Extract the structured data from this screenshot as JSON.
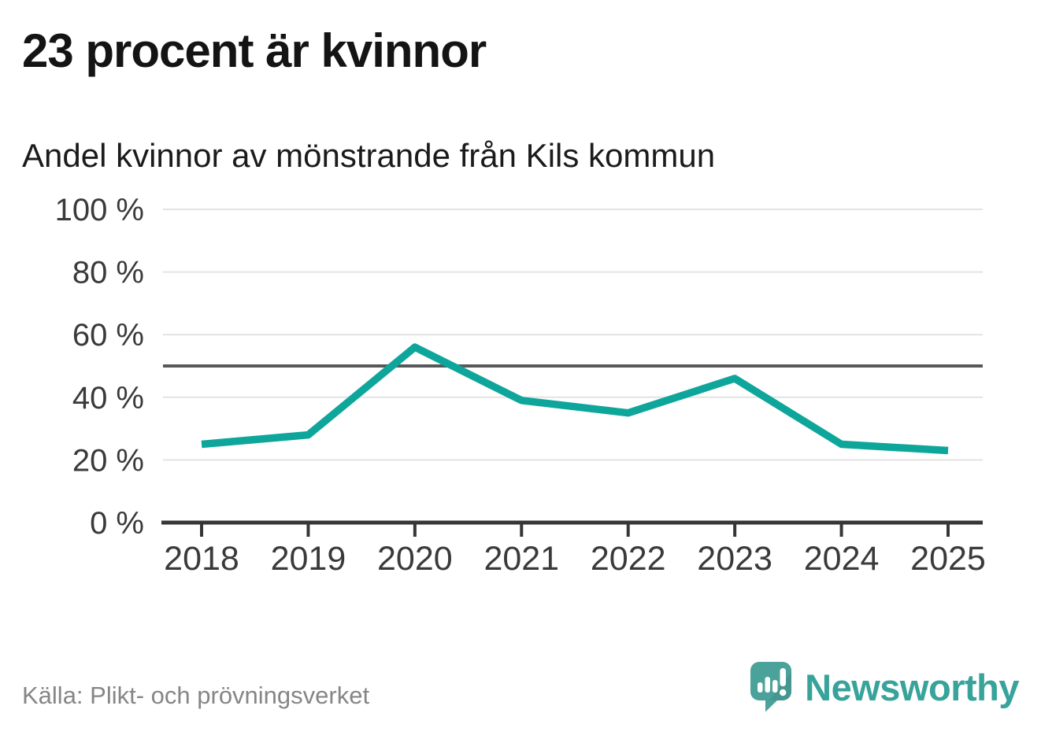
{
  "header": {
    "title": "23 procent är kvinnor",
    "subtitle": "Andel kvinnor av mönstrande från Kils kommun"
  },
  "chart_data": {
    "type": "line",
    "title": "23 procent är kvinnor",
    "subtitle": "Andel kvinnor av mönstrande från Kils kommun",
    "categories": [
      "2018",
      "2019",
      "2020",
      "2021",
      "2022",
      "2023",
      "2024",
      "2025"
    ],
    "series": [
      {
        "name": "Andel kvinnor av mönstrande",
        "values": [
          25,
          28,
          56,
          39,
          35,
          46,
          25,
          23
        ]
      }
    ],
    "xlabel": "",
    "ylabel": "",
    "ylim": [
      0,
      100
    ],
    "y_ticks": [
      {
        "value": 100,
        "label": "100 %"
      },
      {
        "value": 80,
        "label": "80 %"
      },
      {
        "value": 60,
        "label": "60 %"
      },
      {
        "value": 40,
        "label": "40 %"
      },
      {
        "value": 20,
        "label": "20 %"
      },
      {
        "value": 0,
        "label": "0 %"
      }
    ],
    "reference_line": {
      "value": 50
    },
    "grid": true,
    "legend": "none",
    "line_color": "#0ea69b",
    "gridline_color": "#e3e3e3",
    "reference_line_color": "#57585a",
    "axis_color": "#363636",
    "tick_label_color": "#3a3a3a"
  },
  "footer": {
    "source": "Källa: Plikt- och prövningsverket",
    "brand": {
      "name": "Newsworthy",
      "color": "#37a39a",
      "icon": "newsworthy-speech-bubble-chart-icon"
    }
  }
}
